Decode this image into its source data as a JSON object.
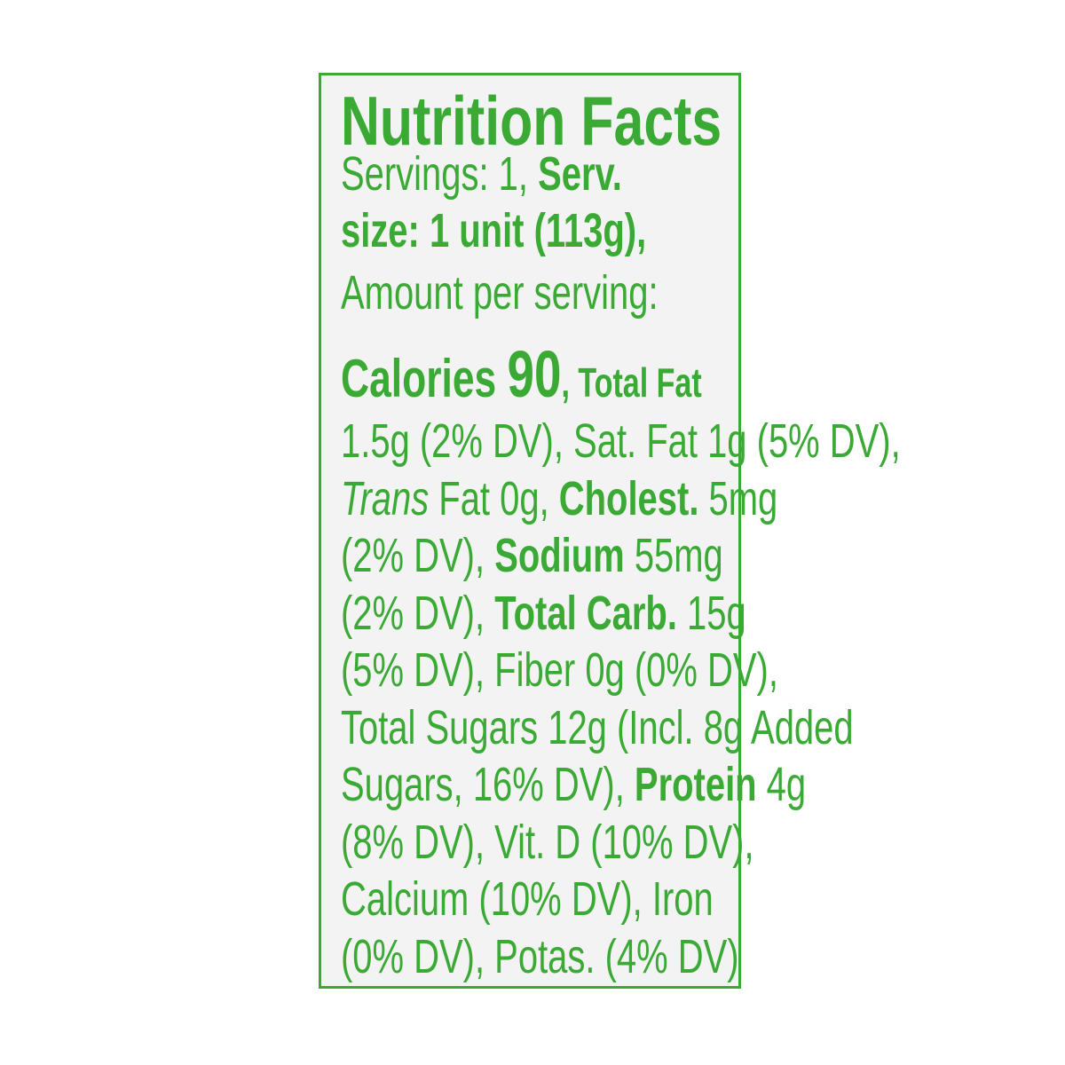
{
  "title": "Nutrition Facts",
  "servings": "Servings: 1,",
  "serv_size_label_1": "Serv.",
  "serv_size_label_2": "size: 1 unit (113g),",
  "amount_per_serving": "Amount per serving:",
  "calories_label": "Calories",
  "calories_value": "90",
  "total_fat_label": "Total Fat",
  "lines": [
    {
      "parts": [
        {
          "t": "1.5g (2% DV), Sat. Fat 1g (5% DV),",
          "s": ""
        }
      ]
    },
    {
      "parts": [
        {
          "t": "Trans",
          "s": "i"
        },
        {
          "t": " Fat 0g, ",
          "s": ""
        },
        {
          "t": "Cholest.",
          "s": "b"
        },
        {
          "t": " 5mg",
          "s": ""
        }
      ]
    },
    {
      "parts": [
        {
          "t": "(2% DV), ",
          "s": ""
        },
        {
          "t": "Sodium",
          "s": "b"
        },
        {
          "t": " 55mg",
          "s": ""
        }
      ]
    },
    {
      "parts": [
        {
          "t": "(2% DV), ",
          "s": ""
        },
        {
          "t": "Total Carb.",
          "s": "b"
        },
        {
          "t": " 15g",
          "s": ""
        }
      ]
    },
    {
      "parts": [
        {
          "t": "(5% DV), Fiber 0g (0% DV),",
          "s": ""
        }
      ]
    },
    {
      "parts": [
        {
          "t": "Total Sugars 12g (Incl. 8g Added",
          "s": ""
        }
      ]
    },
    {
      "parts": [
        {
          "t": "Sugars, 16% DV), ",
          "s": ""
        },
        {
          "t": "Protein",
          "s": "b"
        },
        {
          "t": " 4g",
          "s": ""
        }
      ]
    },
    {
      "parts": [
        {
          "t": "(8% DV), Vit. D (10% DV),",
          "s": ""
        }
      ]
    },
    {
      "parts": [
        {
          "t": "Calcium (10% DV), Iron",
          "s": ""
        }
      ]
    },
    {
      "parts": [
        {
          "t": "(0% DV), Potas. (4% DV)",
          "s": ""
        }
      ]
    }
  ],
  "colors": {
    "text": "#3aaa35",
    "border": "#3aaa35",
    "background": "#f3f3f3"
  }
}
